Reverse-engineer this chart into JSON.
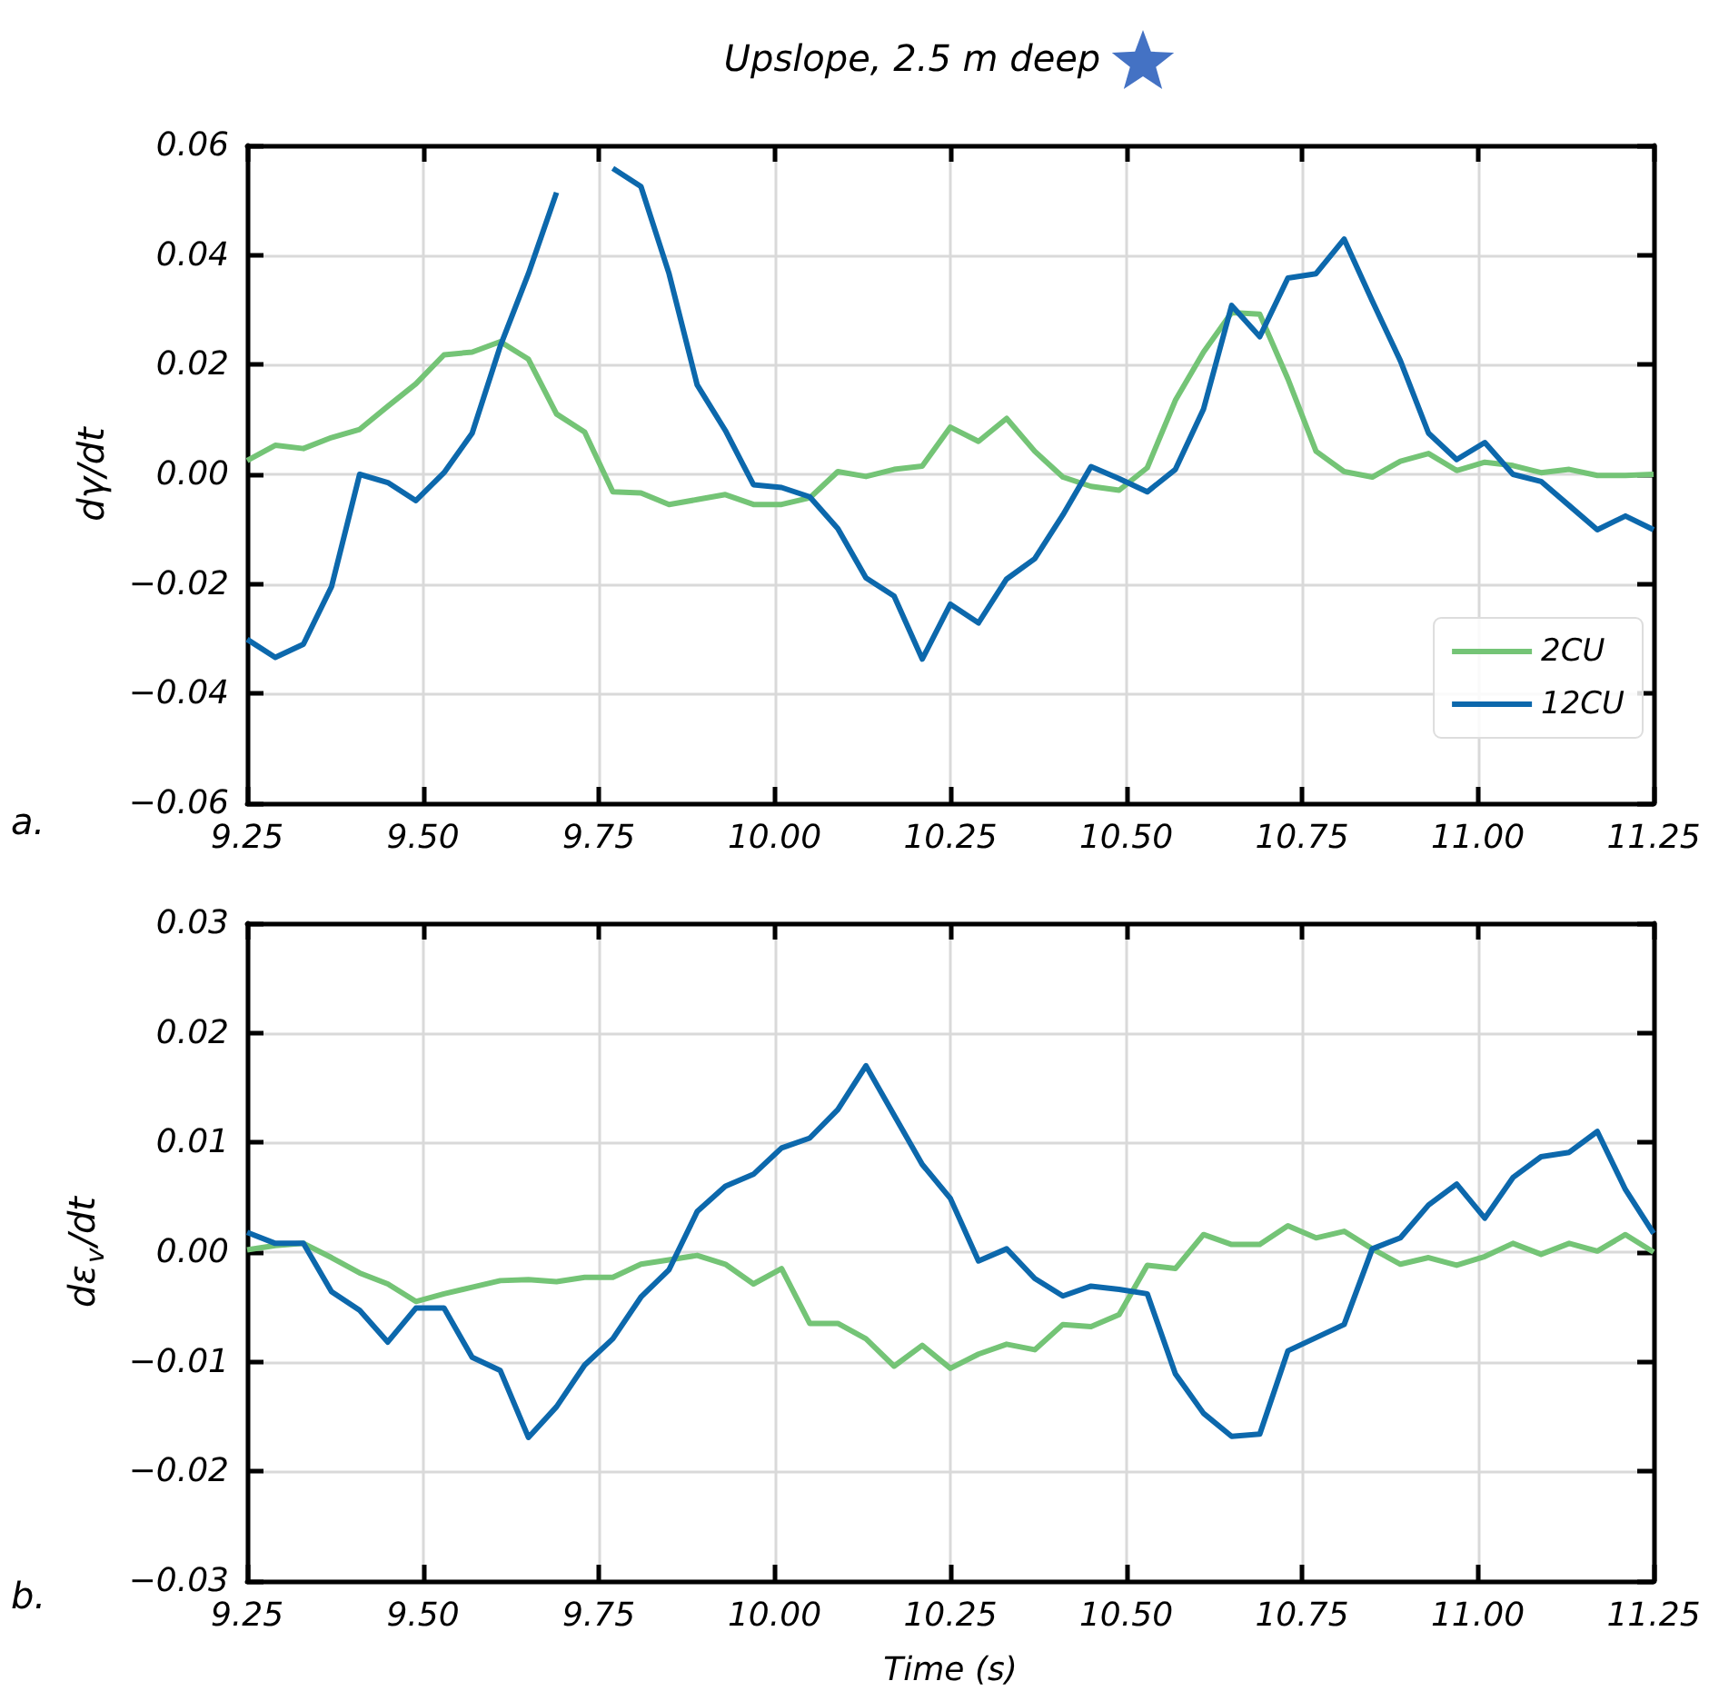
{
  "chart_data": [
    {
      "type": "line",
      "title": "Upslope, 2.5 m deep",
      "ylabel": "dγ/dt",
      "annotations": [
        "a."
      ],
      "x": [
        9.25,
        9.29,
        9.33,
        9.37,
        9.41,
        9.45,
        9.49,
        9.53,
        9.57,
        9.61,
        9.65,
        9.69,
        9.73,
        9.77,
        9.81,
        9.85,
        9.89,
        9.93,
        9.97,
        10.01,
        10.05,
        10.09,
        10.13,
        10.17,
        10.21,
        10.25,
        10.29,
        10.33,
        10.37,
        10.41,
        10.45,
        10.49,
        10.53,
        10.57,
        10.61,
        10.65,
        10.69,
        10.73,
        10.77,
        10.81,
        10.85,
        10.89,
        10.93,
        10.97,
        11.01,
        11.05,
        11.09,
        11.13,
        11.17,
        11.21,
        11.25
      ],
      "series": [
        {
          "name": "2CU",
          "color": "#74c476",
          "values": [
            0.0025,
            0.0053,
            0.0047,
            0.0067,
            0.0082,
            0.0124,
            0.0165,
            0.0218,
            0.0223,
            0.0242,
            0.021,
            0.011,
            0.0077,
            -0.0032,
            -0.0034,
            -0.0055,
            -0.0046,
            -0.0037,
            -0.0055,
            -0.0055,
            -0.0043,
            0.0005,
            -0.0004,
            0.0009,
            0.0015,
            0.0086,
            0.006,
            0.0102,
            0.0042,
            -0.0005,
            -0.0022,
            -0.0029,
            0.0012,
            0.0135,
            0.0223,
            0.0295,
            0.0292,
            0.0174,
            0.0042,
            0.0005,
            -0.0005,
            0.0024,
            0.0038,
            0.0007,
            0.0022,
            0.0016,
            0.0003,
            0.0009,
            -0.0002,
            -0.0002,
            0
          ]
        },
        {
          "name": "12CU",
          "color": "#0c68ac",
          "values": [
            -0.0301,
            -0.0334,
            -0.031,
            -0.0205,
            0.0,
            -0.0015,
            -0.0048,
            0.0003,
            0.0075,
            0.0234,
            0.0366,
            0.0514,
            null,
            0.0558,
            0.0525,
            0.0366,
            0.0163,
            0.008,
            -0.0019,
            -0.0024,
            -0.0041,
            -0.0099,
            -0.0189,
            -0.0222,
            -0.0337,
            -0.0237,
            -0.0271,
            -0.0191,
            -0.0154,
            -0.0074,
            0.0014,
            -0.0008,
            -0.0032,
            0.0009,
            0.0119,
            0.0308,
            0.0251,
            0.0358,
            0.0366,
            0.0429,
            0.0316,
            0.0207,
            0.0075,
            0.0027,
            0.0058,
            0.0,
            -0.0013,
            -0.0057,
            -0.0101,
            -0.0076,
            -0.0101
          ]
        }
      ],
      "xlim": [
        9.25,
        11.25
      ],
      "xticks": [
        {
          "value": 9.25,
          "label": "9.25"
        },
        {
          "value": 9.5,
          "label": "9.50"
        },
        {
          "value": 9.75,
          "label": "9.75"
        },
        {
          "value": 10,
          "label": "10.00"
        },
        {
          "value": 10.25,
          "label": "10.25"
        },
        {
          "value": 10.5,
          "label": "10.50"
        },
        {
          "value": 10.75,
          "label": "10.75"
        },
        {
          "value": 11,
          "label": "11.00"
        },
        {
          "value": 11.25,
          "label": "11.25"
        }
      ],
      "ylim": [
        -0.06,
        0.06
      ],
      "yticks": [
        {
          "value": -0.06,
          "label": "−0.06"
        },
        {
          "value": -0.04,
          "label": "−0.04"
        },
        {
          "value": -0.02,
          "label": "−0.02"
        },
        {
          "value": 0,
          "label": "0.00"
        },
        {
          "value": 0.02,
          "label": "0.02"
        },
        {
          "value": 0.04,
          "label": "0.04"
        },
        {
          "value": 0.06,
          "label": "0.06"
        }
      ],
      "grid": true,
      "legend": "bottom right"
    },
    {
      "type": "line",
      "ylabel": "dε$_{v}$/dt",
      "xlabel": "Time (s)",
      "annotations": [
        "b."
      ],
      "x": [
        9.25,
        9.29,
        9.33,
        9.37,
        9.41,
        9.45,
        9.49,
        9.53,
        9.57,
        9.61,
        9.65,
        9.69,
        9.73,
        9.77,
        9.81,
        9.85,
        9.89,
        9.93,
        9.97,
        10.01,
        10.05,
        10.09,
        10.13,
        10.17,
        10.21,
        10.25,
        10.29,
        10.33,
        10.37,
        10.41,
        10.45,
        10.49,
        10.53,
        10.57,
        10.61,
        10.65,
        10.69,
        10.73,
        10.77,
        10.81,
        10.85,
        10.89,
        10.93,
        10.97,
        11.01,
        11.05,
        11.09,
        11.13,
        11.17,
        11.21,
        11.25
      ],
      "series": [
        {
          "color": "#74c476",
          "values": [
            0.0002,
            0.0006,
            0.0008,
            -0.0005,
            -0.0019,
            -0.0029,
            -0.0045,
            -0.0038,
            -0.0032,
            -0.0026,
            -0.0025,
            -0.0027,
            -0.0023,
            -0.0023,
            -0.0011,
            -0.0007,
            -0.0003,
            -0.0011,
            -0.0029,
            -0.0015,
            -0.0065,
            -0.0065,
            -0.0079,
            -0.0104,
            -0.0085,
            -0.0106,
            -0.0093,
            -0.0084,
            -0.0089,
            -0.0066,
            -0.0068,
            -0.0057,
            -0.0012,
            -0.0015,
            0.0016,
            0.0007,
            0.0007,
            0.0024,
            0.0013,
            0.0019,
            0.0003,
            -0.0011,
            -0.0005,
            -0.0012,
            -0.0004,
            0.0008,
            -0.0002,
            0.0008,
            0.0001,
            0.0016,
            0
          ]
        },
        {
          "color": "#0c68ac",
          "values": [
            0.0018,
            0.0008,
            0.0008,
            -0.0036,
            -0.0053,
            -0.0082,
            -0.0051,
            -0.0051,
            -0.0096,
            -0.0108,
            -0.0169,
            -0.0141,
            -0.0103,
            -0.0079,
            -0.0041,
            -0.0016,
            0.0037,
            0.006,
            0.0071,
            0.0095,
            0.0104,
            0.013,
            0.017,
            0.0125,
            0.008,
            0.0049,
            -0.0008,
            0.0003,
            -0.0024,
            -0.004,
            -0.0031,
            -0.0034,
            -0.0038,
            -0.0111,
            -0.0147,
            -0.0168,
            -0.0166,
            -0.009,
            -0.0078,
            -0.0066,
            0.0003,
            0.0013,
            0.0043,
            0.0062,
            0.0031,
            0.0068,
            0.0087,
            0.0091,
            0.011,
            0.0057,
            0.0017
          ]
        }
      ],
      "xlim": [
        9.25,
        11.25
      ],
      "xticks": [
        {
          "value": 9.25,
          "label": "9.25"
        },
        {
          "value": 9.5,
          "label": "9.50"
        },
        {
          "value": 9.75,
          "label": "9.75"
        },
        {
          "value": 10,
          "label": "10.00"
        },
        {
          "value": 10.25,
          "label": "10.25"
        },
        {
          "value": 10.5,
          "label": "10.50"
        },
        {
          "value": 10.75,
          "label": "10.75"
        },
        {
          "value": 11,
          "label": "11.00"
        },
        {
          "value": 11.25,
          "label": "11.25"
        }
      ],
      "ylim": [
        -0.03,
        0.03
      ],
      "yticks": [
        {
          "value": -0.03,
          "label": "−0.03"
        },
        {
          "value": -0.02,
          "label": "−0.02"
        },
        {
          "value": -0.01,
          "label": "−0.01"
        },
        {
          "value": 0,
          "label": "0.00"
        },
        {
          "value": 0.01,
          "label": "0.01"
        },
        {
          "value": 0.02,
          "label": "0.02"
        },
        {
          "value": 0.03,
          "label": "0.03"
        }
      ],
      "grid": true
    }
  ]
}
